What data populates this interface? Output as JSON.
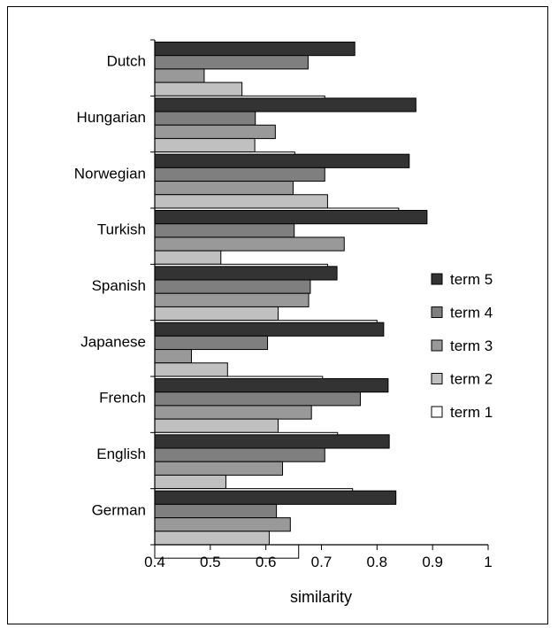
{
  "chart_data": {
    "type": "bar",
    "orientation": "horizontal",
    "title": "",
    "xlabel": "similarity",
    "ylabel": "",
    "xlim": [
      0.4,
      1.0
    ],
    "xticks": [
      0.4,
      0.5,
      0.6,
      0.7,
      0.8,
      0.9,
      1.0
    ],
    "xtick_labels": [
      "0.4",
      "0.5",
      "0.6",
      "0.7",
      "0.8",
      "0.9",
      "1"
    ],
    "grid": false,
    "legend_position": "right",
    "categories": [
      "Dutch",
      "Hungarian",
      "Norwegian",
      "Turkish",
      "Spanish",
      "Japanese",
      "French",
      "English",
      "German"
    ],
    "series": [
      {
        "name": "term 5",
        "color": "#333333",
        "values": [
          0.76,
          0.87,
          0.858,
          0.89,
          0.728,
          0.812,
          0.82,
          0.822,
          0.834
        ]
      },
      {
        "name": "term 4",
        "color": "#7f7f7f",
        "values": [
          0.676,
          0.581,
          0.706,
          0.651,
          0.68,
          0.603,
          0.77,
          0.706,
          0.619
        ]
      },
      {
        "name": "term 3",
        "color": "#999999",
        "values": [
          0.489,
          0.617,
          0.649,
          0.741,
          0.677,
          0.466,
          0.682,
          0.63,
          0.644
        ]
      },
      {
        "name": "term 2",
        "color": "#c0c0c0",
        "values": [
          0.557,
          0.58,
          0.711,
          0.519,
          0.622,
          0.531,
          0.622,
          0.528,
          0.606
        ]
      },
      {
        "name": "term 1",
        "color": "#ffffff",
        "values": [
          0.706,
          0.652,
          0.839,
          0.711,
          0.8,
          0.702,
          0.729,
          0.756,
          0.659
        ]
      }
    ]
  }
}
